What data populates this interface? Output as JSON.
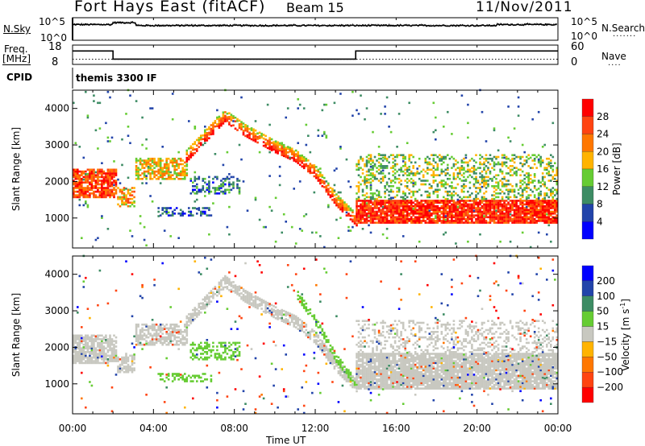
{
  "header": {
    "title": "Fort Hays East (fitACF)",
    "beam": "Beam 15",
    "date": "11/Nov/2011"
  },
  "top_panels": {
    "nsky_label": "N.Sky",
    "nsearch_label": "N.Search",
    "log_ticks": [
      "10^5",
      "10^0"
    ],
    "freq_label_1": "Freq.",
    "freq_label_2": "[MHz]",
    "freq_ticks": [
      "18",
      "8"
    ],
    "nave_label": "Nave",
    "nave_ticks": [
      "60",
      "0"
    ],
    "cpid_label": "CPID",
    "cpid_value": "themis 3300 IF"
  },
  "colors": {
    "power": [
      "#0000ff",
      "#2244aa",
      "#3d8c64",
      "#66cc33",
      "#ffb300",
      "#ff7700",
      "#ff4411",
      "#ff0000"
    ],
    "velocity": [
      "#0000ff",
      "#2244aa",
      "#3d8c64",
      "#66cc33",
      "#c8c8c0",
      "#ffb300",
      "#ff7700",
      "#ff4411",
      "#ff0000"
    ]
  },
  "chart_data": [
    {
      "type": "heatmap",
      "title": "Power",
      "xlabel": "Time UT",
      "ylabel": "Slant Range [km]",
      "xlim_hours": [
        0,
        24
      ],
      "ylim": [
        180,
        4500
      ],
      "x_ticks": [
        "00:00",
        "04:00",
        "08:00",
        "12:00",
        "16:00",
        "20:00",
        "00:00"
      ],
      "y_ticks": [
        "1000",
        "2000",
        "3000",
        "4000"
      ],
      "colorbar": {
        "label": "Power [dB]",
        "ticks": [
          "28",
          "24",
          "20",
          "16",
          "12",
          "8",
          "4"
        ],
        "range": [
          0,
          32
        ]
      },
      "regions": [
        {
          "t": [
            0,
            2.2
          ],
          "r": [
            1550,
            2350
          ],
          "value": 26,
          "density": 0.8
        },
        {
          "t": [
            2.2,
            3.1
          ],
          "r": [
            1300,
            1850
          ],
          "value": 20,
          "density": 0.6
        },
        {
          "t": [
            3.1,
            5.6
          ],
          "r": [
            2050,
            2650
          ],
          "value": 18,
          "density": 0.65
        },
        {
          "t": [
            5.6,
            14.2
          ],
          "arc": [
            [
              5.6,
              2700
            ],
            [
              7.5,
              3800
            ],
            [
              8.5,
              3400
            ],
            [
              10,
              2950
            ],
            [
              11,
              2700
            ],
            [
              12,
              2250
            ],
            [
              13,
              1500
            ],
            [
              14,
              950
            ]
          ],
          "width": 350,
          "value": 22,
          "density": 0.75
        },
        {
          "t": [
            5.8,
            8.2
          ],
          "r": [
            1650,
            2150
          ],
          "value": 8,
          "density": 0.45
        },
        {
          "t": [
            4.2,
            6.8
          ],
          "r": [
            1050,
            1300
          ],
          "value": 6,
          "density": 0.35
        },
        {
          "t": [
            14,
            24
          ],
          "r": [
            850,
            1500
          ],
          "value": 28,
          "density": 0.9
        },
        {
          "t": [
            14,
            24
          ],
          "r": [
            1500,
            2750
          ],
          "value": 14,
          "density": 0.35
        },
        {
          "t": [
            0,
            24
          ],
          "r": [
            180,
            4500
          ],
          "value": 10,
          "density": 0.015
        }
      ]
    },
    {
      "type": "heatmap",
      "title": "Velocity",
      "xlabel": "Time UT",
      "ylabel": "Slant Range [km]",
      "xlim_hours": [
        0,
        24
      ],
      "ylim": [
        180,
        4500
      ],
      "x_ticks": [
        "00:00",
        "04:00",
        "08:00",
        "12:00",
        "16:00",
        "20:00",
        "00:00"
      ],
      "y_ticks": [
        "1000",
        "2000",
        "3000",
        "4000"
      ],
      "colorbar": {
        "label": "Velocity [m s^-1]",
        "ticks": [
          "200",
          "100",
          "50",
          "15",
          "-15",
          "-50",
          "-100",
          "-200"
        ]
      },
      "regions": [
        {
          "t": [
            0,
            2.2
          ],
          "r": [
            1550,
            2350
          ],
          "value": 0,
          "density": 0.8
        },
        {
          "t": [
            2.2,
            3.1
          ],
          "r": [
            1300,
            1850
          ],
          "value": 0,
          "density": 0.6
        },
        {
          "t": [
            3.1,
            5.6
          ],
          "r": [
            2050,
            2650
          ],
          "value": 0,
          "density": 0.65
        },
        {
          "t": [
            5.6,
            14.2
          ],
          "arc": [
            [
              5.6,
              2700
            ],
            [
              7.5,
              3800
            ],
            [
              8.5,
              3400
            ],
            [
              10,
              2950
            ],
            [
              11,
              2700
            ],
            [
              12,
              2250
            ],
            [
              13,
              1500
            ],
            [
              14,
              950
            ]
          ],
          "width": 350,
          "value": 0,
          "density": 0.75
        },
        {
          "t": [
            11,
            14
          ],
          "arc": [
            [
              11,
              3500
            ],
            [
              12,
              2700
            ],
            [
              13,
              1700
            ],
            [
              14,
              1000
            ]
          ],
          "width": 250,
          "value": 30,
          "density": 0.6
        },
        {
          "t": [
            5.8,
            8.2
          ],
          "r": [
            1650,
            2150
          ],
          "value": 30,
          "density": 0.45
        },
        {
          "t": [
            4.2,
            6.8
          ],
          "r": [
            1050,
            1300
          ],
          "value": 30,
          "density": 0.35
        },
        {
          "t": [
            14,
            24
          ],
          "r": [
            850,
            1850
          ],
          "value": 0,
          "density": 0.9
        },
        {
          "t": [
            14,
            24
          ],
          "r": [
            1850,
            2750
          ],
          "value": 0,
          "density": 0.3
        },
        {
          "t": [
            0,
            24
          ],
          "r": [
            180,
            4500
          ],
          "value": -60,
          "density": 0.015
        }
      ]
    }
  ]
}
